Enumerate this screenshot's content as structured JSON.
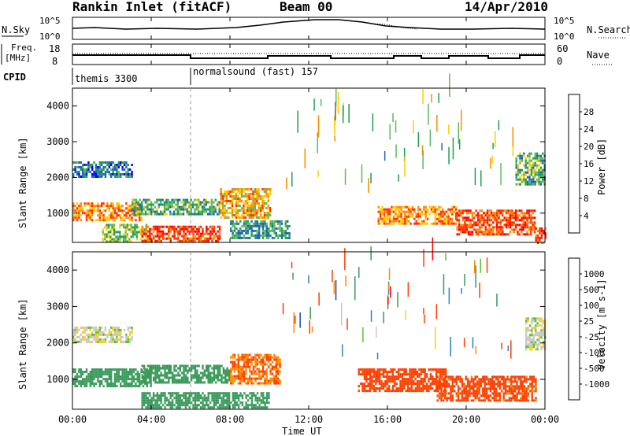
{
  "header": {
    "title": "Rankin Inlet (fitACF)",
    "beam": "Beam 00",
    "date": "14/Apr/2010"
  },
  "panels": {
    "nsky": {
      "left_label": "N.Sky",
      "right_label": "N.Search",
      "ticks": [
        "10^5",
        "10^0"
      ],
      "right_ticks": [
        "10^5",
        "10^0"
      ]
    },
    "freq": {
      "left_label_1": "Freq.",
      "left_label_2": "[MHz]",
      "right_label": "Nave",
      "ticks": [
        "18",
        "8"
      ],
      "right_ticks": [
        "60",
        "0"
      ]
    },
    "cpid": {
      "label": "CPID",
      "entries": [
        {
          "text": "themis 3300",
          "start_hour": 0
        },
        {
          "text": "normalsound (fast) 157",
          "start_hour": 6
        }
      ]
    }
  },
  "chart_data": [
    {
      "type": "heatmap",
      "name": "power",
      "ylabel": "Slant Range [km]",
      "xlabel": "",
      "xlim": [
        0,
        24
      ],
      "ylim": [
        180,
        4500
      ],
      "y_ticks": [
        1000,
        2000,
        3000,
        4000
      ],
      "colorbar": {
        "label": "Power [dB]",
        "ticks": [
          "28",
          "24",
          "20",
          "16",
          "12",
          "8",
          "4"
        ],
        "colors": [
          "#ff0000",
          "#ff3300",
          "#ff8c00",
          "#ffcc00",
          "#5fb85f",
          "#1f9f4f",
          "#2060c0",
          "#0000ff"
        ]
      },
      "regions": [
        {
          "t0": 0.0,
          "t1": 3.0,
          "r0": 2050,
          "r1": 2450,
          "value": 8
        },
        {
          "t0": 0.0,
          "t1": 3.5,
          "r0": 800,
          "r1": 1300,
          "value": 22
        },
        {
          "t0": 1.5,
          "t1": 3.8,
          "r0": 200,
          "r1": 700,
          "value": 14
        },
        {
          "t0": 3.0,
          "t1": 7.5,
          "r0": 1000,
          "r1": 1400,
          "value": 12
        },
        {
          "t0": 3.5,
          "t1": 7.5,
          "r0": 250,
          "r1": 650,
          "value": 26
        },
        {
          "t0": 7.5,
          "t1": 10.0,
          "r0": 900,
          "r1": 1700,
          "value": 20
        },
        {
          "t0": 8.0,
          "t1": 11.0,
          "r0": 300,
          "r1": 800,
          "value": 10
        },
        {
          "t0": 15.5,
          "t1": 19.5,
          "r0": 700,
          "r1": 1200,
          "value": 22
        },
        {
          "t0": 19.5,
          "t1": 23.5,
          "r0": 400,
          "r1": 1100,
          "value": 26
        },
        {
          "t0": 22.5,
          "t1": 24.0,
          "r0": 1800,
          "r1": 2700,
          "value": 12
        },
        {
          "t0": 23.5,
          "t1": 24.0,
          "r0": 200,
          "r1": 600,
          "value": 28
        }
      ]
    },
    {
      "type": "heatmap",
      "name": "velocity",
      "ylabel": "Slant Range [km]",
      "xlabel": "Time UT",
      "xlim": [
        0,
        24
      ],
      "ylim": [
        180,
        4500
      ],
      "y_ticks": [
        1000,
        2000,
        3000,
        4000
      ],
      "x_ticks": [
        "00:00",
        "04:00",
        "08:00",
        "12:00",
        "16:00",
        "20:00",
        "00:00"
      ],
      "colorbar": {
        "label": "Velocity [m s-1]",
        "ticks": [
          "1000",
          "500",
          "100",
          "25",
          "-25",
          "-100",
          "-500",
          "-1000"
        ],
        "colors": [
          "#2040c0",
          "#2f7fbf",
          "#3a9a5a",
          "#60c030",
          "#c8c8c8",
          "#ffd000",
          "#ff8c00",
          "#ff4000",
          "#ff0000"
        ]
      },
      "regions": [
        {
          "t0": 0.0,
          "t1": 3.0,
          "r0": 2000,
          "r1": 2450,
          "value": 0
        },
        {
          "t0": 0.0,
          "t1": 4.0,
          "r0": 800,
          "r1": 1300,
          "value": 200
        },
        {
          "t0": 3.5,
          "t1": 8.0,
          "r0": 900,
          "r1": 1400,
          "value": 150
        },
        {
          "t0": 3.5,
          "t1": 10.0,
          "r0": 200,
          "r1": 650,
          "value": 120
        },
        {
          "t0": 8.0,
          "t1": 10.5,
          "r0": 900,
          "r1": 1700,
          "value": -300
        },
        {
          "t0": 14.5,
          "t1": 19.0,
          "r0": 700,
          "r1": 1300,
          "value": -500
        },
        {
          "t0": 18.5,
          "t1": 23.5,
          "r0": 400,
          "r1": 1100,
          "value": -400
        },
        {
          "t0": 23.0,
          "t1": 24.0,
          "r0": 1800,
          "r1": 2700,
          "value": 0
        }
      ]
    }
  ]
}
